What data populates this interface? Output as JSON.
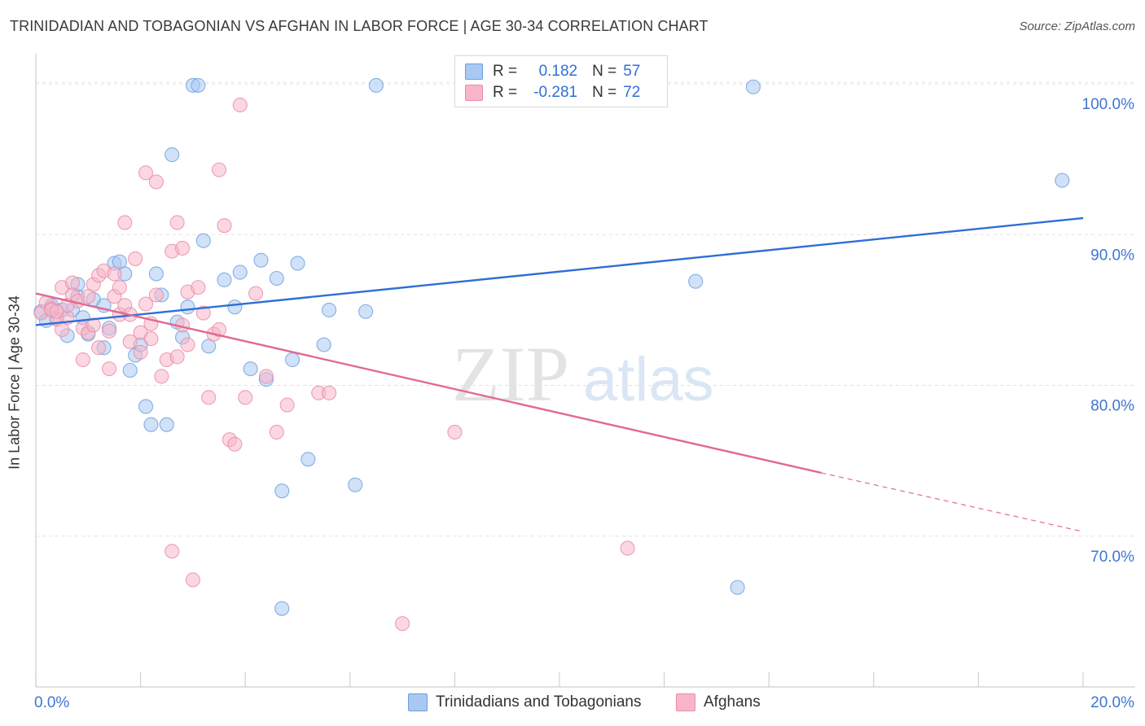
{
  "title": "TRINIDADIAN AND TOBAGONIAN VS AFGHAN IN LABOR FORCE | AGE 30-34 CORRELATION CHART",
  "source": "Source: ZipAtlas.com",
  "watermark": {
    "zip": "ZIP",
    "atlas": "atlas"
  },
  "legend": {
    "r_label": "R =",
    "n_label": "N =",
    "rows": [
      {
        "r": "0.182",
        "n": "57",
        "color": "#a9c8f2"
      },
      {
        "r": "-0.281",
        "n": "72",
        "color": "#f7b6c8"
      }
    ]
  },
  "chart_data": {
    "type": "scatter",
    "title": "TRINIDADIAN AND TOBAGONIAN VS AFGHAN IN LABOR FORCE | AGE 30-34 CORRELATION CHART",
    "xlabel": "",
    "ylabel": "In Labor Force | Age 30-34",
    "xlim": [
      0,
      20
    ],
    "ylim": [
      60,
      102
    ],
    "x_tick_labels": [
      "0.0%",
      "20.0%"
    ],
    "y_tick_labels": [
      "100.0%",
      "90.0%",
      "80.0%",
      "70.0%"
    ],
    "y_ticks": [
      100,
      90,
      80,
      70
    ],
    "x_minor_ticks": [
      0,
      2,
      4,
      6,
      8,
      10,
      12,
      14,
      16,
      18,
      20
    ],
    "grid": true,
    "legend_position": "bottom",
    "series": [
      {
        "name": "Trinidadians and Tobagonians",
        "color": "#a9c8f2",
        "edge": "#6a9fe0",
        "trend": {
          "x": [
            0,
            20
          ],
          "y": [
            84.0,
            91.1
          ],
          "color": "#2e6fd6"
        },
        "points": [
          [
            0.1,
            84.9
          ],
          [
            0.2,
            84.3
          ],
          [
            0.3,
            85.3
          ],
          [
            0.4,
            84.4
          ],
          [
            0.5,
            85.0
          ],
          [
            0.6,
            83.3
          ],
          [
            0.7,
            85.0
          ],
          [
            0.8,
            85.9
          ],
          [
            0.8,
            86.7
          ],
          [
            0.9,
            84.5
          ],
          [
            1.0,
            83.4
          ],
          [
            1.1,
            85.7
          ],
          [
            1.3,
            85.3
          ],
          [
            1.3,
            82.5
          ],
          [
            1.4,
            83.8
          ],
          [
            1.5,
            88.1
          ],
          [
            1.6,
            88.2
          ],
          [
            1.7,
            87.4
          ],
          [
            1.8,
            81.0
          ],
          [
            1.9,
            82.0
          ],
          [
            2.0,
            82.7
          ],
          [
            2.1,
            78.6
          ],
          [
            2.2,
            77.4
          ],
          [
            2.3,
            87.4
          ],
          [
            2.4,
            86.0
          ],
          [
            2.5,
            77.4
          ],
          [
            2.6,
            95.3
          ],
          [
            2.7,
            84.2
          ],
          [
            2.8,
            83.2
          ],
          [
            2.9,
            85.2
          ],
          [
            3.0,
            99.9
          ],
          [
            3.1,
            99.9
          ],
          [
            3.2,
            89.6
          ],
          [
            3.3,
            82.6
          ],
          [
            3.6,
            87.0
          ],
          [
            3.8,
            85.2
          ],
          [
            3.9,
            87.5
          ],
          [
            4.1,
            81.1
          ],
          [
            4.3,
            88.3
          ],
          [
            4.4,
            80.4
          ],
          [
            4.6,
            87.1
          ],
          [
            4.7,
            73.0
          ],
          [
            4.9,
            81.7
          ],
          [
            5.0,
            88.1
          ],
          [
            5.2,
            75.1
          ],
          [
            5.5,
            82.7
          ],
          [
            5.6,
            85.0
          ],
          [
            6.1,
            73.4
          ],
          [
            6.3,
            84.9
          ],
          [
            6.5,
            99.9
          ],
          [
            10.1,
            99.8
          ],
          [
            10.4,
            99.9
          ],
          [
            12.6,
            86.9
          ],
          [
            13.4,
            66.6
          ],
          [
            13.7,
            99.8
          ],
          [
            19.6,
            93.6
          ],
          [
            4.7,
            65.2
          ]
        ]
      },
      {
        "name": "Afghans",
        "color": "#f7b6c8",
        "edge": "#ea8aa6",
        "trend": {
          "x": [
            0,
            15
          ],
          "y": [
            86.1,
            74.2
          ],
          "dash_x": [
            15,
            20
          ],
          "dash_y": [
            74.2,
            70.3
          ],
          "color": "#e06a92"
        },
        "points": [
          [
            0.1,
            84.8
          ],
          [
            0.2,
            85.5
          ],
          [
            0.3,
            85.1
          ],
          [
            0.4,
            84.4
          ],
          [
            0.5,
            86.5
          ],
          [
            0.6,
            84.5
          ],
          [
            0.7,
            86.8
          ],
          [
            0.7,
            86.0
          ],
          [
            0.8,
            85.6
          ],
          [
            0.9,
            83.8
          ],
          [
            0.9,
            81.7
          ],
          [
            1.0,
            83.5
          ],
          [
            1.1,
            86.7
          ],
          [
            1.1,
            84.0
          ],
          [
            1.2,
            87.3
          ],
          [
            1.3,
            87.6
          ],
          [
            1.4,
            83.6
          ],
          [
            1.5,
            85.9
          ],
          [
            1.5,
            87.4
          ],
          [
            1.6,
            84.7
          ],
          [
            1.7,
            90.8
          ],
          [
            1.7,
            85.3
          ],
          [
            1.8,
            84.7
          ],
          [
            1.8,
            82.9
          ],
          [
            1.9,
            88.4
          ],
          [
            2.0,
            83.5
          ],
          [
            2.0,
            82.2
          ],
          [
            2.1,
            85.4
          ],
          [
            2.1,
            94.1
          ],
          [
            2.2,
            83.1
          ],
          [
            2.3,
            86.0
          ],
          [
            2.3,
            93.5
          ],
          [
            2.4,
            80.6
          ],
          [
            2.5,
            81.7
          ],
          [
            2.6,
            88.9
          ],
          [
            2.6,
            69.0
          ],
          [
            2.7,
            90.8
          ],
          [
            2.8,
            84.0
          ],
          [
            2.8,
            89.1
          ],
          [
            2.9,
            82.7
          ],
          [
            2.9,
            86.2
          ],
          [
            3.0,
            67.1
          ],
          [
            3.1,
            86.5
          ],
          [
            3.2,
            84.8
          ],
          [
            3.3,
            79.2
          ],
          [
            3.4,
            83.4
          ],
          [
            3.5,
            94.3
          ],
          [
            3.6,
            90.6
          ],
          [
            3.7,
            76.4
          ],
          [
            3.8,
            76.1
          ],
          [
            3.9,
            98.6
          ],
          [
            4.0,
            79.2
          ],
          [
            4.2,
            86.1
          ],
          [
            4.4,
            80.6
          ],
          [
            4.6,
            76.9
          ],
          [
            4.8,
            78.7
          ],
          [
            5.4,
            79.5
          ],
          [
            5.6,
            79.5
          ],
          [
            7.0,
            64.2
          ],
          [
            8.0,
            76.9
          ],
          [
            11.3,
            69.2
          ],
          [
            1.2,
            82.5
          ],
          [
            1.4,
            81.1
          ],
          [
            0.3,
            85.0
          ],
          [
            0.5,
            83.7
          ],
          [
            2.2,
            84.1
          ],
          [
            0.6,
            85.3
          ],
          [
            1.0,
            85.9
          ],
          [
            1.6,
            86.5
          ],
          [
            3.5,
            83.7
          ],
          [
            0.4,
            84.9
          ],
          [
            2.7,
            81.9
          ]
        ]
      }
    ]
  }
}
